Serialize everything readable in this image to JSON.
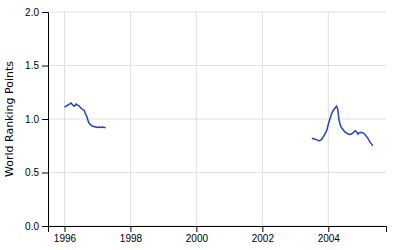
{
  "chart_data": {
    "type": "line",
    "ylabel": "World Ranking Points",
    "xlim": [
      1995.5,
      2005.75
    ],
    "xticks": [
      1996,
      1998,
      2000,
      2002,
      2004
    ],
    "ylim": [
      0,
      2.0
    ],
    "yticks": [
      {
        "value": 0,
        "label": "0.0"
      },
      0.5,
      {
        "value": 1.0,
        "label": "1.0"
      },
      1.5,
      {
        "value": 2.0,
        "label": "2.0"
      }
    ],
    "grid": true,
    "series": [
      {
        "color": "#2244bb",
        "x": [
          1996.0,
          1996.05,
          1996.1,
          1996.15,
          1996.2,
          1996.25,
          1996.3,
          1996.35,
          1996.4,
          1996.45,
          1996.5,
          1996.55,
          1996.6,
          1996.62,
          1996.65,
          1996.68,
          1996.7,
          1996.72,
          1996.75,
          1996.78,
          1996.82,
          1996.86,
          1996.9,
          1996.95,
          1997.0,
          1997.05,
          1997.1,
          1997.15,
          1997.2,
          1997.25
        ],
        "values": [
          1.11,
          1.12,
          1.13,
          1.14,
          1.15,
          1.13,
          1.12,
          1.14,
          1.13,
          1.12,
          1.1,
          1.09,
          1.08,
          1.06,
          1.04,
          1.02,
          1.0,
          0.98,
          0.96,
          0.95,
          0.94,
          0.93,
          0.93,
          0.925,
          0.92,
          0.925,
          0.92,
          0.925,
          0.92,
          0.92
        ]
      },
      {
        "color": "#2244bb",
        "x": [
          2003.5,
          2003.55,
          2003.6,
          2003.65,
          2003.7,
          2003.72,
          2003.75,
          2003.78,
          2003.82,
          2003.86,
          2003.9,
          2003.93,
          2003.96,
          2004.0,
          2004.05,
          2004.1,
          2004.15,
          2004.2,
          2004.25,
          2004.28,
          2004.3,
          2004.32,
          2004.35,
          2004.38,
          2004.4,
          2004.45,
          2004.5,
          2004.55,
          2004.6,
          2004.65,
          2004.7,
          2004.75,
          2004.78,
          2004.82,
          2004.85,
          2004.88,
          2004.9,
          2004.92,
          2004.95,
          2005.0,
          2005.05,
          2005.1,
          2005.15,
          2005.2,
          2005.25,
          2005.3,
          2005.35
        ],
        "values": [
          0.82,
          0.815,
          0.81,
          0.805,
          0.8,
          0.795,
          0.8,
          0.805,
          0.82,
          0.84,
          0.86,
          0.88,
          0.9,
          0.95,
          1.0,
          1.05,
          1.08,
          1.1,
          1.12,
          1.1,
          1.06,
          1.0,
          0.96,
          0.93,
          0.92,
          0.9,
          0.88,
          0.87,
          0.86,
          0.855,
          0.86,
          0.87,
          0.88,
          0.89,
          0.88,
          0.87,
          0.86,
          0.87,
          0.87,
          0.875,
          0.87,
          0.86,
          0.84,
          0.82,
          0.79,
          0.77,
          0.75
        ]
      }
    ]
  }
}
